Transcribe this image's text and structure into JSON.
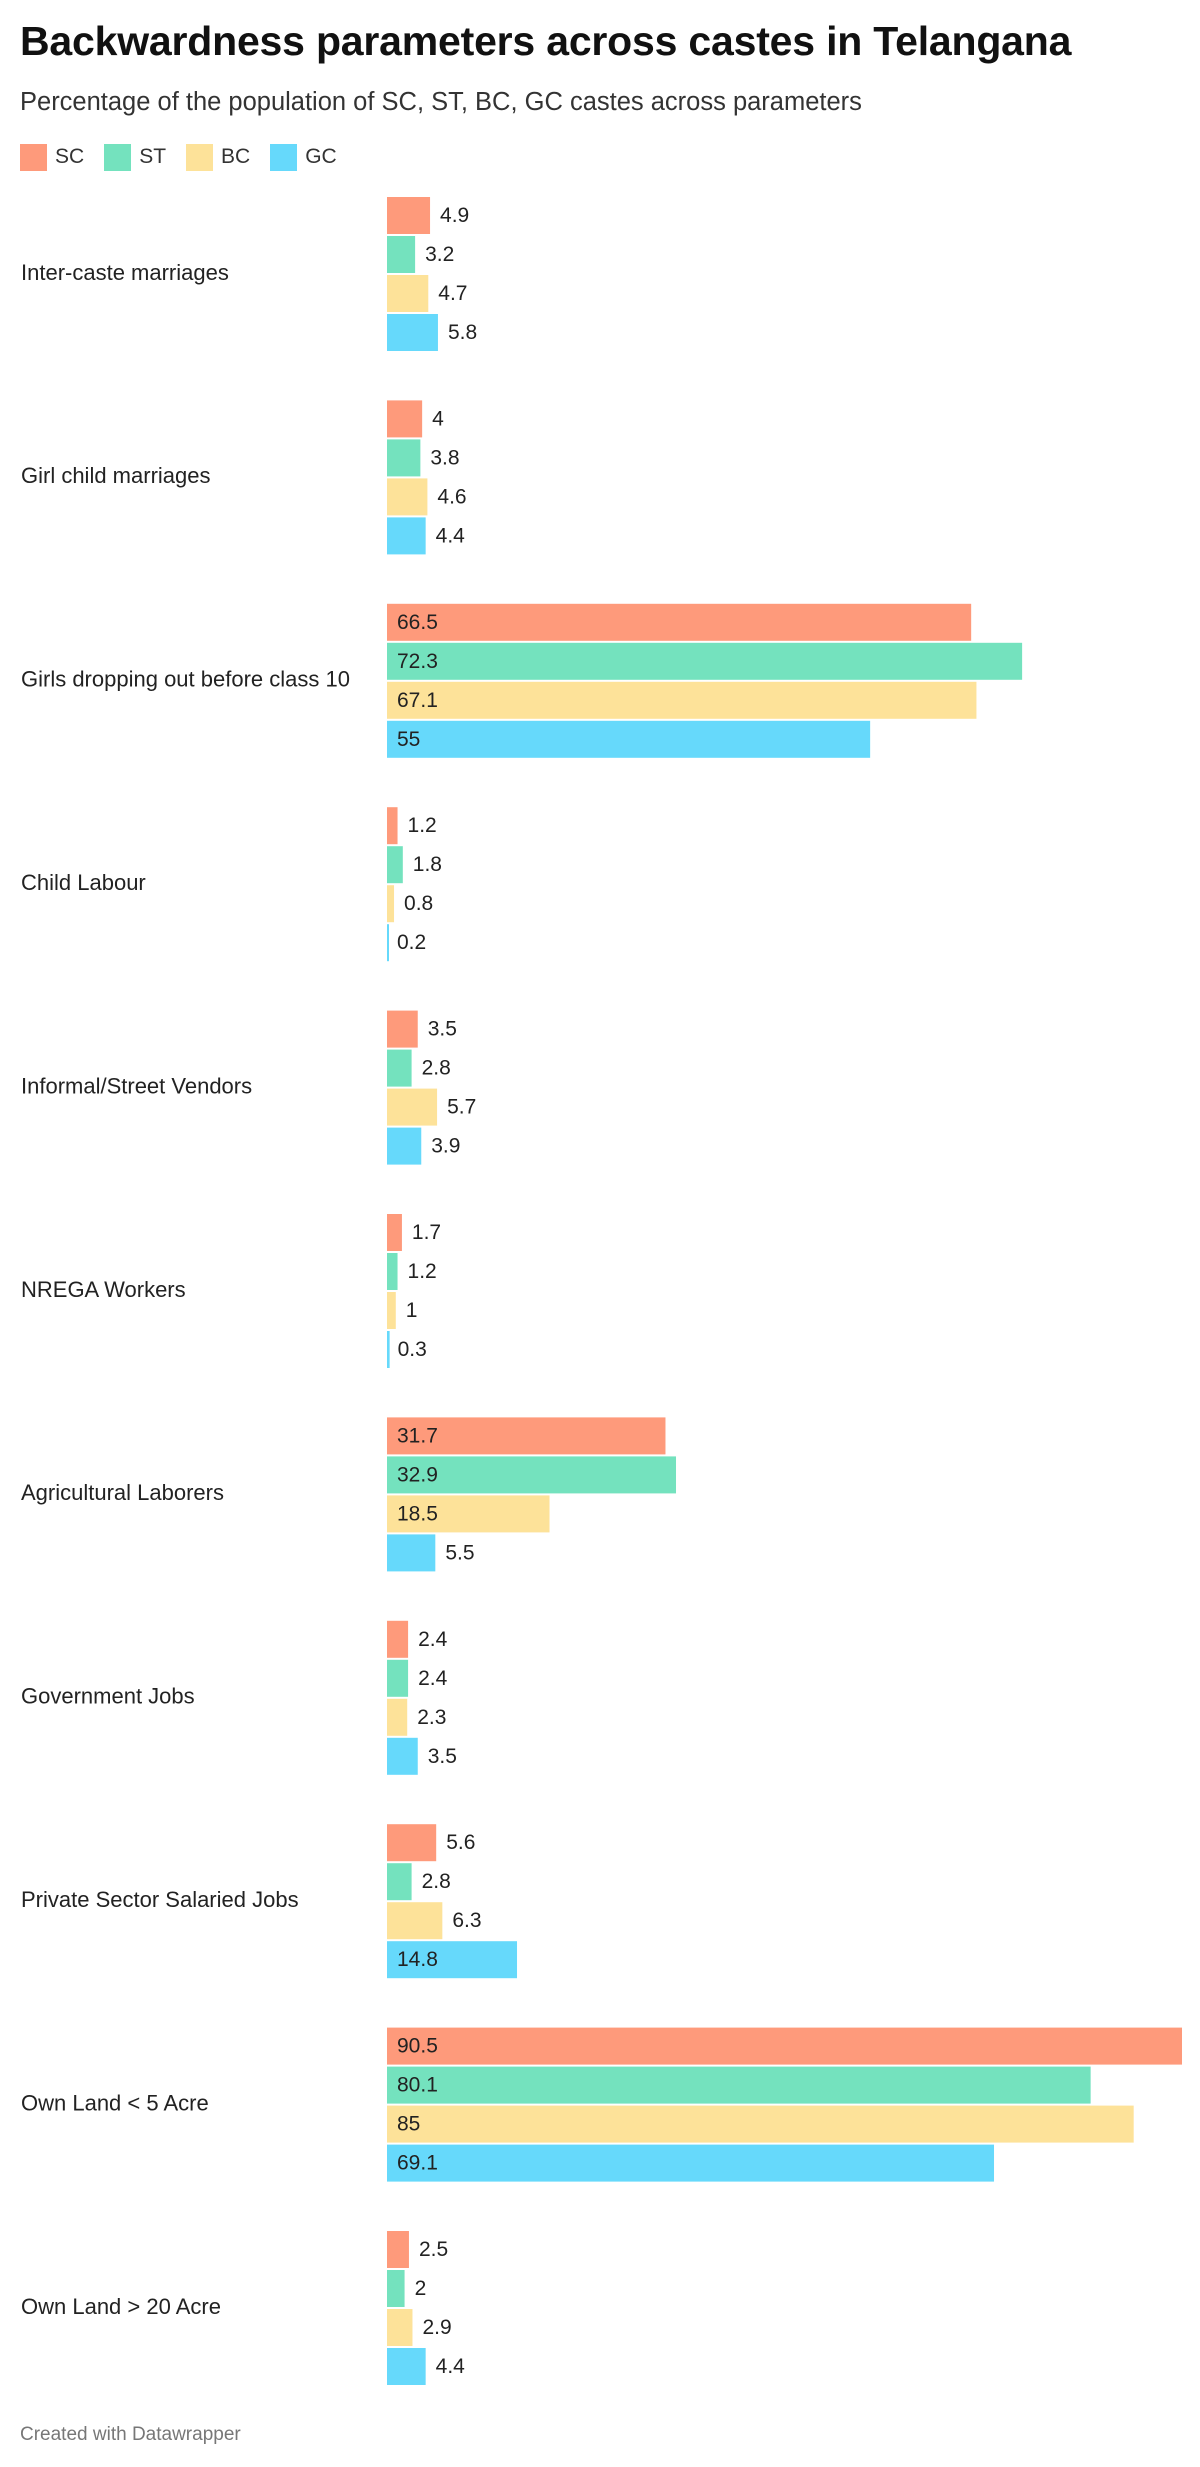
{
  "title": "Backwardness parameters across castes in Telangana",
  "subtitle": "Percentage of the population of SC, ST, BC, GC castes across parameters",
  "footer": "Created with Datawrapper",
  "colors": {
    "SC": "#fe9a7b",
    "ST": "#74e2be",
    "BC": "#fde299",
    "GC": "#66d9fb"
  },
  "chart_data": {
    "type": "bar",
    "orientation": "horizontal-grouped",
    "title": "Backwardness parameters across castes in Telangana",
    "subtitle": "Percentage of the population of SC, ST, BC, GC castes across parameters",
    "xlim": [
      0,
      90.5
    ],
    "grid": false,
    "legend": "top-left",
    "categories": [
      "Inter-caste marriages",
      "Girl child marriages",
      "Girls dropping out before class 10",
      "Child Labour",
      "Informal/Street Vendors",
      "NREGA Workers",
      "Agricultural Laborers",
      "Government Jobs",
      "Private Sector Salaried Jobs",
      "Own Land < 5 Acre",
      "Own Land > 20 Acre"
    ],
    "series": [
      {
        "name": "SC",
        "values": [
          4.9,
          4,
          66.5,
          1.2,
          3.5,
          1.7,
          31.7,
          2.4,
          5.6,
          90.5,
          2.5
        ]
      },
      {
        "name": "ST",
        "values": [
          3.2,
          3.8,
          72.3,
          1.8,
          2.8,
          1.2,
          32.9,
          2.4,
          2.8,
          80.1,
          2
        ]
      },
      {
        "name": "BC",
        "values": [
          4.7,
          4.6,
          67.1,
          0.8,
          5.7,
          1,
          18.5,
          2.3,
          6.3,
          85,
          2.9
        ]
      },
      {
        "name": "GC",
        "values": [
          5.8,
          4.4,
          55,
          0.2,
          3.9,
          0.3,
          5.5,
          3.5,
          14.8,
          69.1,
          4.4
        ]
      }
    ]
  }
}
